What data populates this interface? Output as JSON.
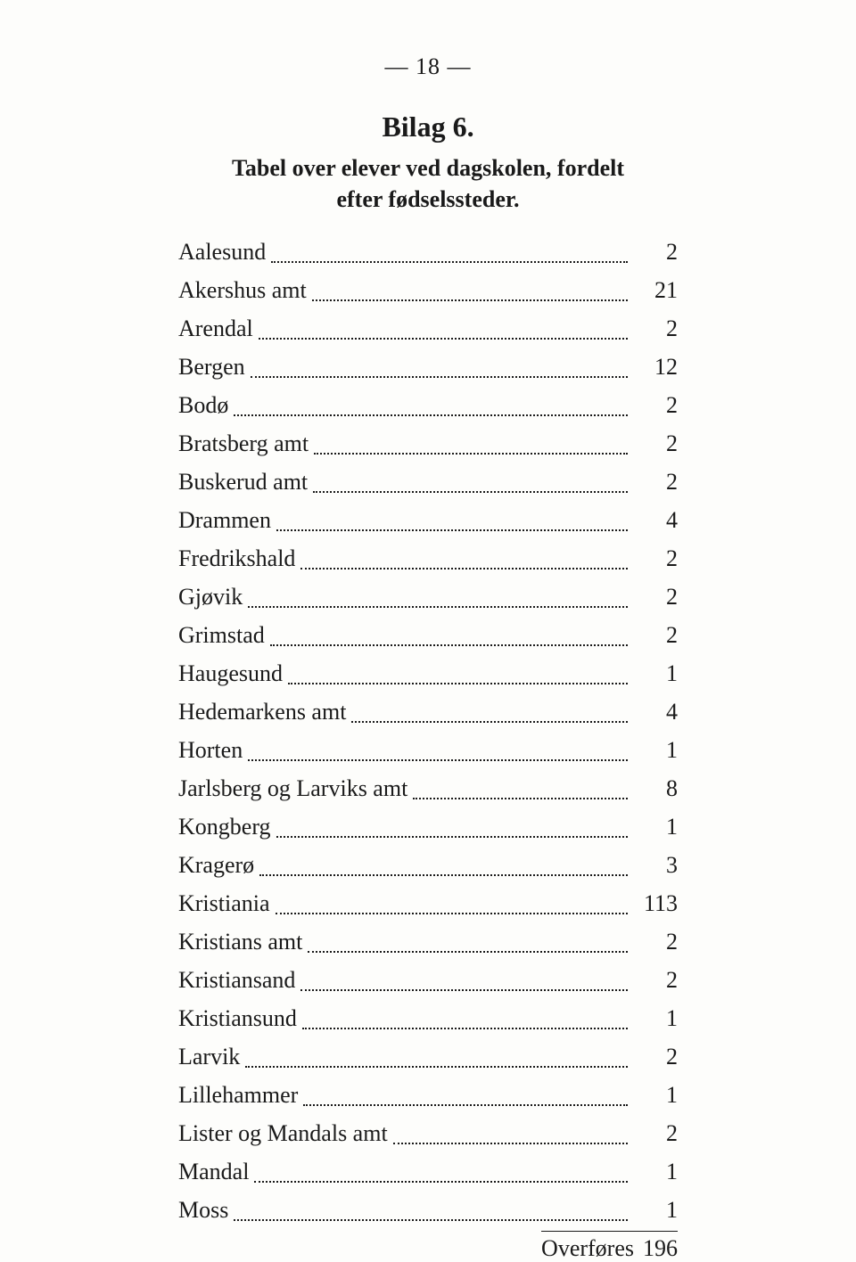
{
  "page_number_display": "— 18 —",
  "title": "Bilag 6.",
  "subtitle_line1": "Tabel over elever ved dagskolen, fordelt",
  "subtitle_line2": "efter fødselssteder.",
  "entries": [
    {
      "label": "Aalesund",
      "value": "2"
    },
    {
      "label": "Akershus amt",
      "value": "21"
    },
    {
      "label": "Arendal",
      "value": "2"
    },
    {
      "label": "Bergen",
      "value": "12"
    },
    {
      "label": "Bodø",
      "value": "2"
    },
    {
      "label": "Bratsberg amt",
      "value": "2"
    },
    {
      "label": "Buskerud amt",
      "value": "2"
    },
    {
      "label": "Drammen",
      "value": "4"
    },
    {
      "label": "Fredrikshald",
      "value": "2"
    },
    {
      "label": "Gjøvik",
      "value": "2"
    },
    {
      "label": "Grimstad",
      "value": "2"
    },
    {
      "label": "Haugesund",
      "value": "1"
    },
    {
      "label": "Hedemarkens amt",
      "value": "4"
    },
    {
      "label": "Horten",
      "value": "1"
    },
    {
      "label": "Jarlsberg og Larviks amt",
      "value": "8"
    },
    {
      "label": "Kongberg",
      "value": "1"
    },
    {
      "label": "Kragerø",
      "value": "3"
    },
    {
      "label": "Kristiania",
      "value": "113"
    },
    {
      "label": "Kristians amt",
      "value": "2"
    },
    {
      "label": "Kristiansand",
      "value": "2"
    },
    {
      "label": "Kristiansund",
      "value": "1"
    },
    {
      "label": "Larvik",
      "value": "2"
    },
    {
      "label": "Lillehammer",
      "value": "1"
    },
    {
      "label": "Lister og Mandals amt",
      "value": "2"
    },
    {
      "label": "Mandal",
      "value": "1"
    },
    {
      "label": "Moss",
      "value": "1"
    }
  ],
  "carry_label": "Overføres",
  "carry_value": "196"
}
